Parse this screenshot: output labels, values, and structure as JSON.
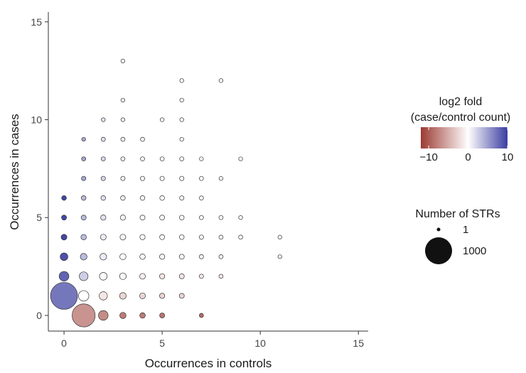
{
  "chart_data": {
    "type": "scatter",
    "xlabel": "Occurrences in controls",
    "ylabel": "Occurrences in cases",
    "xlim": [
      -0.8,
      15.5
    ],
    "ylim": [
      -0.8,
      15.5
    ],
    "xticks": [
      0,
      5,
      10,
      15
    ],
    "yticks": [
      0,
      5,
      10,
      15
    ],
    "grid": false,
    "color_legend": {
      "title_lines": [
        "log2 fold",
        "(case/control count)"
      ],
      "ticks": [
        -10,
        0,
        10
      ],
      "tick_labels": [
        "−10",
        "0",
        "10"
      ],
      "range": [
        -12,
        10
      ],
      "low_color": "#9b3a32",
      "mid_color": "#ffffff",
      "high_color": "#3a3ca0"
    },
    "size_legend": {
      "title": "Number of STRs",
      "entries": [
        {
          "label": "1",
          "count": 1
        },
        {
          "label": "1000",
          "count": 1000
        }
      ]
    },
    "points": [
      {
        "x": 0,
        "y": 1,
        "count": 1000,
        "log2fold": 7.0
      },
      {
        "x": 1,
        "y": 0,
        "count": 700,
        "log2fold": -6.5
      },
      {
        "x": 0,
        "y": 2,
        "count": 80,
        "log2fold": 8.0
      },
      {
        "x": 0,
        "y": 3,
        "count": 40,
        "log2fold": 9.0
      },
      {
        "x": 0,
        "y": 4,
        "count": 15,
        "log2fold": 9.5
      },
      {
        "x": 0,
        "y": 5,
        "count": 8,
        "log2fold": 9.5
      },
      {
        "x": 0,
        "y": 6,
        "count": 6,
        "log2fold": 9.5
      },
      {
        "x": 1,
        "y": 1,
        "count": 100,
        "log2fold": 0
      },
      {
        "x": 1,
        "y": 2,
        "count": 60,
        "log2fold": 2.5
      },
      {
        "x": 1,
        "y": 3,
        "count": 25,
        "log2fold": 3.5
      },
      {
        "x": 1,
        "y": 4,
        "count": 12,
        "log2fold": 3.5
      },
      {
        "x": 1,
        "y": 5,
        "count": 8,
        "log2fold": 3.5
      },
      {
        "x": 1,
        "y": 6,
        "count": 6,
        "log2fold": 3.5
      },
      {
        "x": 1,
        "y": 7,
        "count": 4,
        "log2fold": 4.5
      },
      {
        "x": 1,
        "y": 8,
        "count": 3,
        "log2fold": 4.5
      },
      {
        "x": 1,
        "y": 9,
        "count": 2,
        "log2fold": 4.5
      },
      {
        "x": 2,
        "y": 0,
        "count": 80,
        "log2fold": -7.0
      },
      {
        "x": 2,
        "y": 1,
        "count": 50,
        "log2fold": -1.5
      },
      {
        "x": 2,
        "y": 2,
        "count": 40,
        "log2fold": 0.2
      },
      {
        "x": 2,
        "y": 3,
        "count": 25,
        "log2fold": 1.0
      },
      {
        "x": 2,
        "y": 4,
        "count": 15,
        "log2fold": 1.0
      },
      {
        "x": 2,
        "y": 5,
        "count": 10,
        "log2fold": 1.5
      },
      {
        "x": 2,
        "y": 6,
        "count": 6,
        "log2fold": 1.5
      },
      {
        "x": 2,
        "y": 7,
        "count": 4,
        "log2fold": 2.0
      },
      {
        "x": 2,
        "y": 8,
        "count": 3,
        "log2fold": 2.0
      },
      {
        "x": 2,
        "y": 9,
        "count": 3,
        "log2fold": 1.5
      },
      {
        "x": 2,
        "y": 10,
        "count": 2,
        "log2fold": 1.5
      },
      {
        "x": 3,
        "y": 0,
        "count": 20,
        "log2fold": -8.0
      },
      {
        "x": 3,
        "y": 1,
        "count": 25,
        "log2fold": -2.5
      },
      {
        "x": 3,
        "y": 2,
        "count": 25,
        "log2fold": -0.5
      },
      {
        "x": 3,
        "y": 3,
        "count": 20,
        "log2fold": 0.2
      },
      {
        "x": 3,
        "y": 4,
        "count": 15,
        "log2fold": 0.5
      },
      {
        "x": 3,
        "y": 5,
        "count": 10,
        "log2fold": 0.5
      },
      {
        "x": 3,
        "y": 6,
        "count": 6,
        "log2fold": 0.8
      },
      {
        "x": 3,
        "y": 7,
        "count": 4,
        "log2fold": 0.8
      },
      {
        "x": 3,
        "y": 8,
        "count": 3,
        "log2fold": 0.8
      },
      {
        "x": 3,
        "y": 9,
        "count": 3,
        "log2fold": 0.8
      },
      {
        "x": 3,
        "y": 10,
        "count": 2,
        "log2fold": 0.8
      },
      {
        "x": 3,
        "y": 11,
        "count": 2,
        "log2fold": 0.8
      },
      {
        "x": 3,
        "y": 13,
        "count": 2,
        "log2fold": 0.5
      },
      {
        "x": 4,
        "y": 0,
        "count": 12,
        "log2fold": -8.0
      },
      {
        "x": 4,
        "y": 1,
        "count": 15,
        "log2fold": -2.5
      },
      {
        "x": 4,
        "y": 2,
        "count": 15,
        "log2fold": -1.2
      },
      {
        "x": 4,
        "y": 3,
        "count": 12,
        "log2fold": -0.5
      },
      {
        "x": 4,
        "y": 4,
        "count": 10,
        "log2fold": 0.2
      },
      {
        "x": 4,
        "y": 5,
        "count": 8,
        "log2fold": 0.3
      },
      {
        "x": 4,
        "y": 6,
        "count": 6,
        "log2fold": 0.3
      },
      {
        "x": 4,
        "y": 7,
        "count": 4,
        "log2fold": 0.3
      },
      {
        "x": 4,
        "y": 8,
        "count": 3,
        "log2fold": 0.3
      },
      {
        "x": 4,
        "y": 9,
        "count": 3,
        "log2fold": 0.3
      },
      {
        "x": 5,
        "y": 0,
        "count": 8,
        "log2fold": -8.5
      },
      {
        "x": 5,
        "y": 1,
        "count": 10,
        "log2fold": -2.5
      },
      {
        "x": 5,
        "y": 2,
        "count": 10,
        "log2fold": -1.5
      },
      {
        "x": 5,
        "y": 3,
        "count": 10,
        "log2fold": -0.6
      },
      {
        "x": 5,
        "y": 4,
        "count": 8,
        "log2fold": -0.2
      },
      {
        "x": 5,
        "y": 5,
        "count": 8,
        "log2fold": 0
      },
      {
        "x": 5,
        "y": 6,
        "count": 6,
        "log2fold": 0
      },
      {
        "x": 5,
        "y": 7,
        "count": 4,
        "log2fold": 0
      },
      {
        "x": 5,
        "y": 8,
        "count": 3,
        "log2fold": 0
      },
      {
        "x": 5,
        "y": 10,
        "count": 2,
        "log2fold": 0
      },
      {
        "x": 6,
        "y": 1,
        "count": 8,
        "log2fold": -2.5
      },
      {
        "x": 6,
        "y": 2,
        "count": 8,
        "log2fold": -1.5
      },
      {
        "x": 6,
        "y": 3,
        "count": 8,
        "log2fold": -0.8
      },
      {
        "x": 6,
        "y": 4,
        "count": 6,
        "log2fold": -0.3
      },
      {
        "x": 6,
        "y": 5,
        "count": 6,
        "log2fold": -0.2
      },
      {
        "x": 6,
        "y": 6,
        "count": 4,
        "log2fold": 0
      },
      {
        "x": 6,
        "y": 7,
        "count": 4,
        "log2fold": 0
      },
      {
        "x": 6,
        "y": 8,
        "count": 3,
        "log2fold": 0
      },
      {
        "x": 6,
        "y": 9,
        "count": 2,
        "log2fold": 0
      },
      {
        "x": 6,
        "y": 10,
        "count": 2,
        "log2fold": 0
      },
      {
        "x": 6,
        "y": 11,
        "count": 2,
        "log2fold": 0
      },
      {
        "x": 6,
        "y": 12,
        "count": 2,
        "log2fold": 0
      },
      {
        "x": 7,
        "y": 0,
        "count": 3,
        "log2fold": -9.0
      },
      {
        "x": 7,
        "y": 2,
        "count": 4,
        "log2fold": -1.5
      },
      {
        "x": 7,
        "y": 3,
        "count": 4,
        "log2fold": -1.0
      },
      {
        "x": 7,
        "y": 4,
        "count": 4,
        "log2fold": -0.5
      },
      {
        "x": 7,
        "y": 5,
        "count": 3,
        "log2fold": -0.3
      },
      {
        "x": 7,
        "y": 6,
        "count": 3,
        "log2fold": -0.2
      },
      {
        "x": 7,
        "y": 7,
        "count": 3,
        "log2fold": 0
      },
      {
        "x": 7,
        "y": 8,
        "count": 2,
        "log2fold": 0
      },
      {
        "x": 8,
        "y": 2,
        "count": 3,
        "log2fold": -1.5
      },
      {
        "x": 8,
        "y": 3,
        "count": 3,
        "log2fold": -1.0
      },
      {
        "x": 8,
        "y": 4,
        "count": 3,
        "log2fold": -0.5
      },
      {
        "x": 8,
        "y": 5,
        "count": 3,
        "log2fold": -0.3
      },
      {
        "x": 8,
        "y": 7,
        "count": 2,
        "log2fold": 0
      },
      {
        "x": 8,
        "y": 12,
        "count": 2,
        "log2fold": 0
      },
      {
        "x": 9,
        "y": 4,
        "count": 3,
        "log2fold": -0.3
      },
      {
        "x": 9,
        "y": 5,
        "count": 2,
        "log2fold": -0.2
      },
      {
        "x": 9,
        "y": 8,
        "count": 2,
        "log2fold": 0
      },
      {
        "x": 11,
        "y": 3,
        "count": 2,
        "log2fold": -1.2
      },
      {
        "x": 11,
        "y": 4,
        "count": 2,
        "log2fold": -0.3
      }
    ]
  }
}
